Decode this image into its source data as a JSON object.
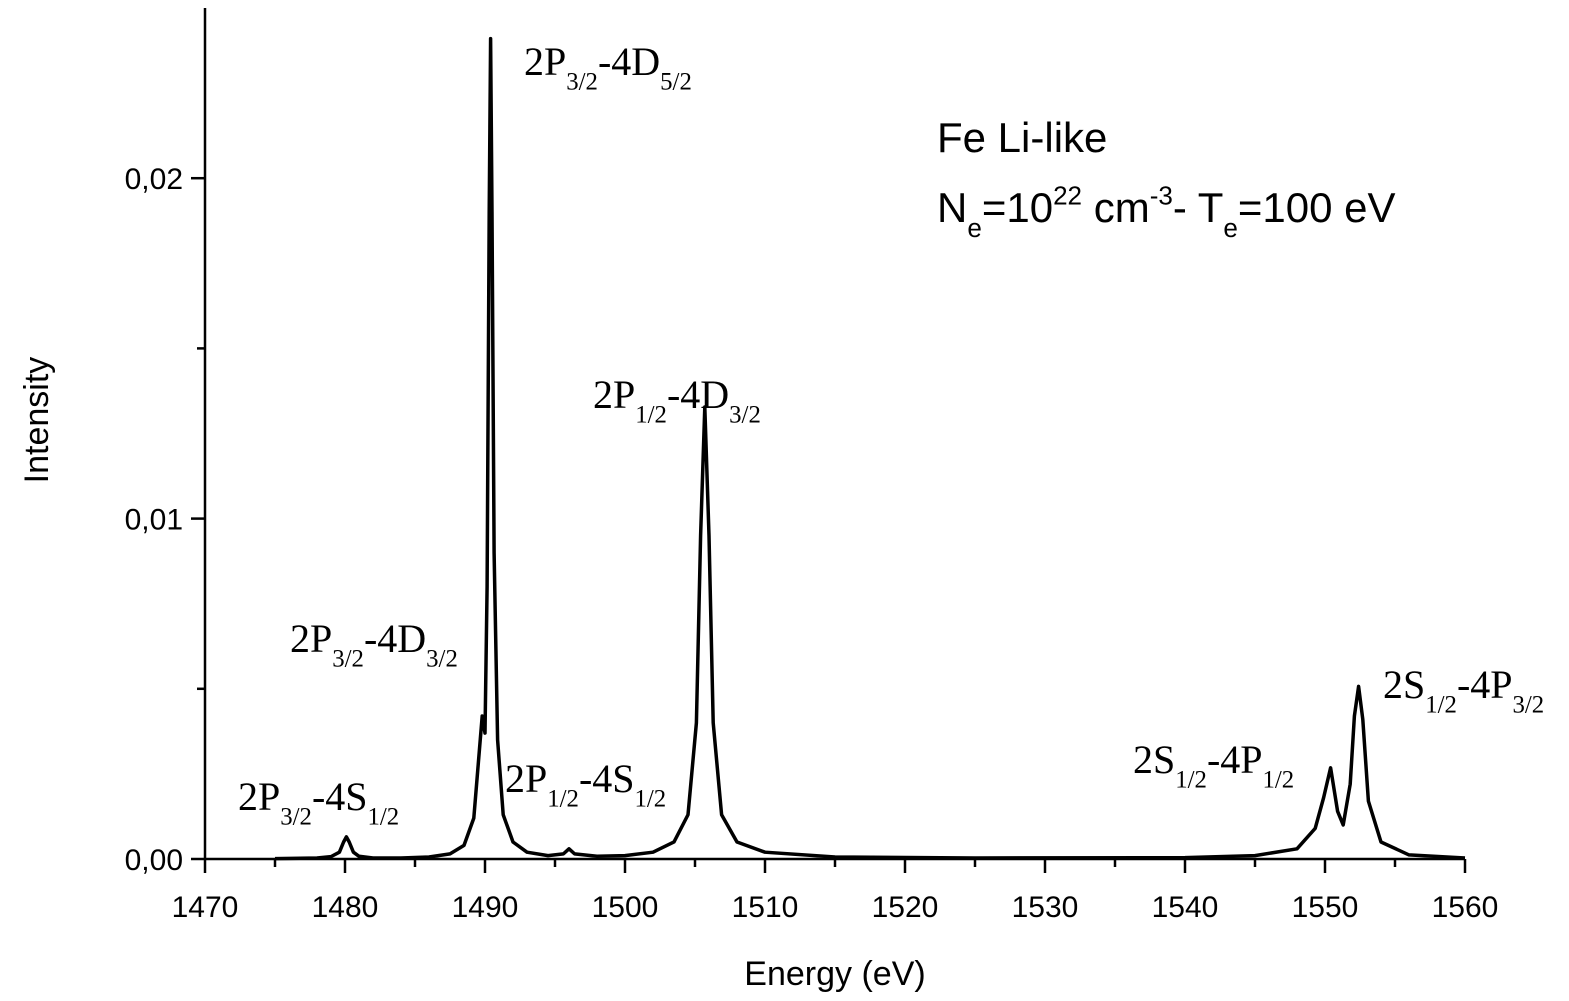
{
  "chart_data": {
    "type": "line",
    "x_label": "Energy (eV)",
    "y_label": "Intensity",
    "color": "#000000",
    "x": [
      1475,
      1478,
      1479,
      1479.6,
      1479.9,
      1480.1,
      1480.3,
      1480.6,
      1481,
      1482,
      1484,
      1486,
      1487.5,
      1488.5,
      1489.2,
      1489.6,
      1489.8,
      1490.0,
      1490.15,
      1490.3,
      1490.4,
      1490.5,
      1490.65,
      1490.9,
      1491.3,
      1492,
      1493,
      1494.5,
      1495.6,
      1496.0,
      1496.4,
      1498,
      1500,
      1502,
      1503.5,
      1504.5,
      1505.1,
      1505.4,
      1505.7,
      1506.0,
      1506.3,
      1506.9,
      1508,
      1510,
      1515,
      1525,
      1540,
      1545,
      1548,
      1549.3,
      1549.9,
      1550.4,
      1550.9,
      1551.3,
      1551.8,
      1552.1,
      1552.4,
      1552.7,
      1553.1,
      1554,
      1556,
      1560
    ],
    "values": [
      1e-05,
      3e-05,
      7e-05,
      0.0002,
      0.0005,
      0.00065,
      0.0005,
      0.0002,
      8e-05,
      3e-05,
      3e-05,
      6e-05,
      0.00015,
      0.0004,
      0.0012,
      0.0032,
      0.0042,
      0.0037,
      0.008,
      0.019,
      0.0241,
      0.019,
      0.009,
      0.0035,
      0.0013,
      0.0005,
      0.0002,
      0.0001,
      0.00015,
      0.0003,
      0.00015,
      8e-05,
      0.0001,
      0.0002,
      0.0005,
      0.0013,
      0.004,
      0.0095,
      0.01328,
      0.0095,
      0.004,
      0.0013,
      0.0005,
      0.0002,
      6e-05,
      3e-05,
      4e-05,
      0.0001,
      0.0003,
      0.0009,
      0.0018,
      0.00268,
      0.0014,
      0.001,
      0.0022,
      0.0042,
      0.00507,
      0.0041,
      0.0017,
      0.0005,
      0.00012,
      3e-05
    ],
    "xlim": [
      1470,
      1560
    ],
    "xticks": [
      1470,
      1480,
      1490,
      1500,
      1510,
      1520,
      1530,
      1540,
      1550,
      1560
    ],
    "ylim": [
      0,
      0.025
    ],
    "yticks": [
      {
        "value": 0,
        "label": "0,00"
      },
      {
        "value": 0.01,
        "label": "0,01"
      },
      {
        "value": 0.02,
        "label": "0,02"
      }
    ],
    "annotations": [
      {
        "parts": [
          {
            "text": "2P"
          },
          {
            "text": "3/2",
            "shift": "sub"
          },
          {
            "text": "-4D"
          },
          {
            "text": "5/2",
            "shift": "sub"
          }
        ]
      },
      {
        "parts": [
          {
            "text": "2P"
          },
          {
            "text": "1/2",
            "shift": "sub"
          },
          {
            "text": "-4D"
          },
          {
            "text": "3/2",
            "shift": "sub"
          }
        ]
      },
      {
        "parts": [
          {
            "text": "2P"
          },
          {
            "text": "3/2",
            "shift": "sub"
          },
          {
            "text": "-4D"
          },
          {
            "text": "3/2",
            "shift": "sub"
          }
        ]
      },
      {
        "parts": [
          {
            "text": "2P"
          },
          {
            "text": "1/2",
            "shift": "sub"
          },
          {
            "text": "-4S"
          },
          {
            "text": "1/2",
            "shift": "sub"
          }
        ]
      },
      {
        "parts": [
          {
            "text": "2P"
          },
          {
            "text": "3/2",
            "shift": "sub"
          },
          {
            "text": "-4S"
          },
          {
            "text": "1/2",
            "shift": "sub"
          }
        ]
      },
      {
        "parts": [
          {
            "text": "2S"
          },
          {
            "text": "1/2",
            "shift": "sub"
          },
          {
            "text": "-4P"
          },
          {
            "text": "1/2",
            "shift": "sub"
          }
        ]
      },
      {
        "parts": [
          {
            "text": "2S"
          },
          {
            "text": "1/2",
            "shift": "sub"
          },
          {
            "text": "-4P"
          },
          {
            "text": "3/2",
            "shift": "sub"
          }
        ]
      }
    ],
    "info": [
      {
        "parts": [
          {
            "text": "Fe Li-like"
          }
        ]
      },
      {
        "parts": [
          {
            "text": "N"
          },
          {
            "text": "e",
            "shift": "sub"
          },
          {
            "text": "=10"
          },
          {
            "text": "22",
            "shift": "sup"
          },
          {
            "text": " cm"
          },
          {
            "text": "-3",
            "shift": "sup"
          },
          {
            "text": "- T"
          },
          {
            "text": "e",
            "shift": "sub"
          },
          {
            "text": "=100 eV"
          }
        ]
      }
    ]
  }
}
